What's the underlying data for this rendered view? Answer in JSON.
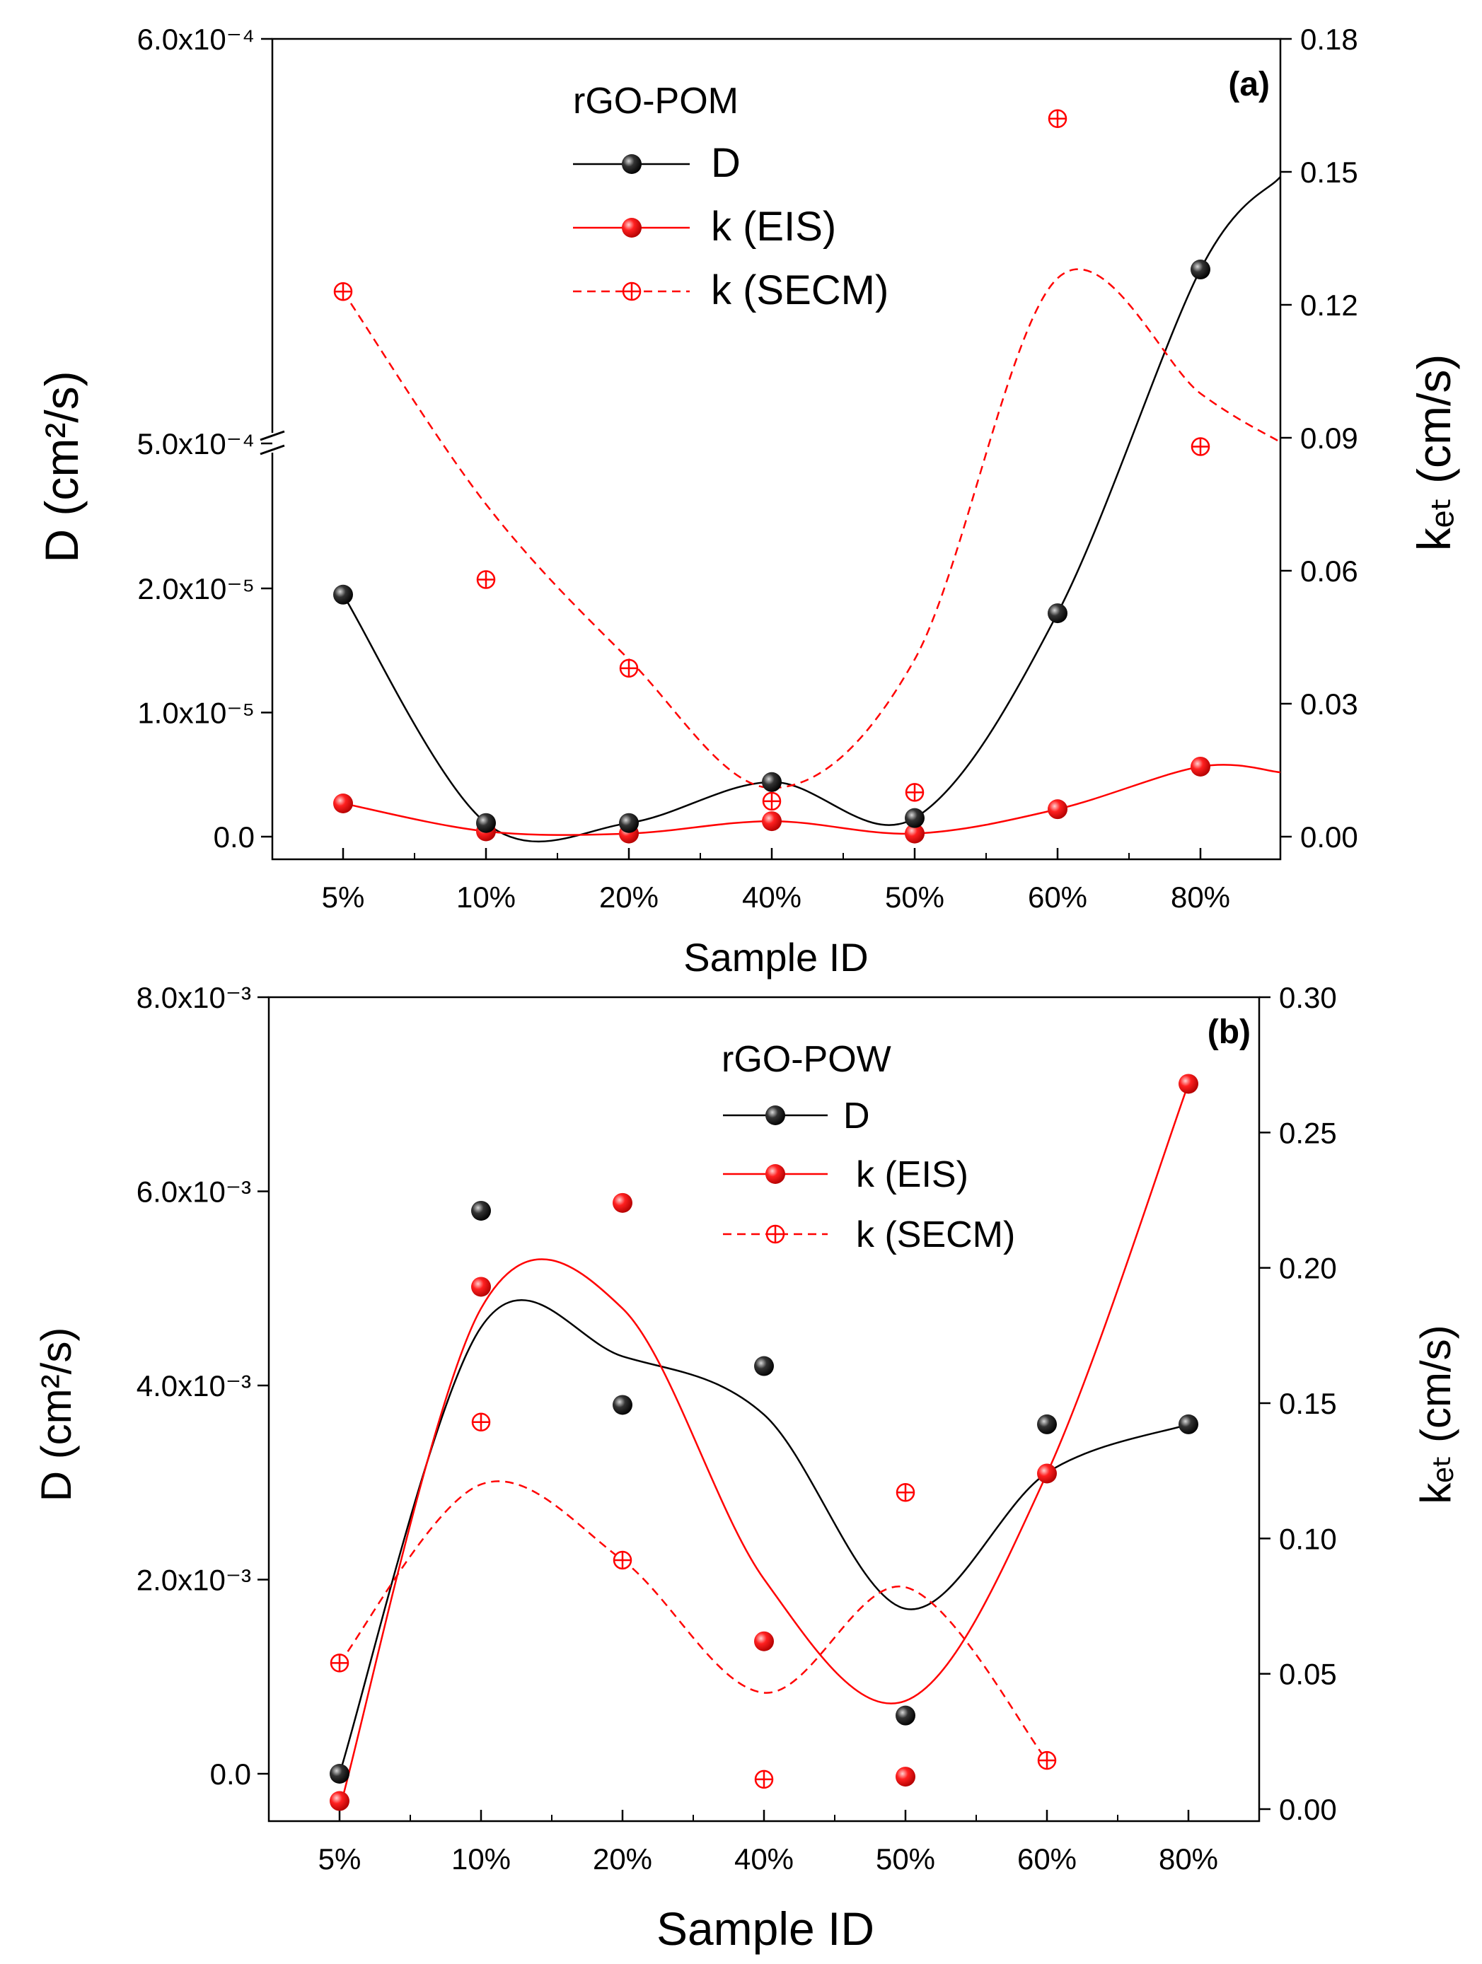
{
  "chart_data": [
    {
      "panel": "(a)",
      "type": "scatter",
      "title": "rGO-POM",
      "categories": [
        "5%",
        "10%",
        "20%",
        "40%",
        "50%",
        "60%",
        "80%"
      ],
      "xlabel": "Sample ID",
      "ylabel_left": "D (cm²/s)",
      "ylabel_right": "kₑₜ (cm/s)",
      "left_axis_broken": true,
      "left_ticks_lower": [
        "0.0",
        "1.0x10⁻⁵",
        "2.0x10⁻⁵"
      ],
      "left_ticks_upper": [
        "5.0x10⁻⁴",
        "6.0x10⁻⁴"
      ],
      "right_ticks": [
        "0.00",
        "0.03",
        "0.06",
        "0.09",
        "0.12",
        "0.15",
        "0.18"
      ],
      "right_ylim": [
        0,
        0.18
      ],
      "series": [
        {
          "name": "D",
          "axis": "left",
          "color": "#000000",
          "marker": "ball",
          "values": [
            "1.95e-5",
            "1.1e-6",
            "1.1e-6",
            "4.4e-6",
            "1.5e-6",
            "1.8e-5",
            "5.43e-4"
          ]
        },
        {
          "name": "k (EIS)",
          "axis": "right",
          "color": "#ff0000",
          "marker": "ball",
          "values": [
            0.0075,
            0.0012,
            0.0007,
            0.0035,
            0.0007,
            0.0062,
            0.0158
          ]
        },
        {
          "name": "k (SECM)",
          "axis": "right",
          "color": "#ff0000",
          "marker": "crosscircle",
          "dashed": true,
          "values": [
            0.123,
            0.058,
            0.038,
            0.008,
            0.01,
            0.162,
            0.088
          ]
        }
      ]
    },
    {
      "panel": "(b)",
      "type": "scatter",
      "title": "rGO-POW",
      "categories": [
        "5%",
        "10%",
        "20%",
        "40%",
        "50%",
        "60%",
        "80%"
      ],
      "xlabel": "Sample ID",
      "ylabel_left": "D (cm²/s)",
      "ylabel_right": "kₑₜ (cm/s)",
      "left_ticks": [
        "0.0",
        "2.0x10⁻³",
        "4.0x10⁻³",
        "6.0x10⁻³",
        "8.0x10⁻³"
      ],
      "left_ylim": [
        -0.0005,
        0.008
      ],
      "right_ticks": [
        "0.00",
        "0.05",
        "0.10",
        "0.15",
        "0.20",
        "0.25",
        "0.30"
      ],
      "right_ylim": [
        0,
        0.3
      ],
      "series": [
        {
          "name": "D",
          "axis": "left",
          "color": "#000000",
          "marker": "ball",
          "values": [
            0.0,
            0.0058,
            0.0038,
            0.0042,
            0.0006,
            0.0036,
            0.0036
          ]
        },
        {
          "name": "k (EIS)",
          "axis": "right",
          "color": "#ff0000",
          "marker": "ball",
          "values": [
            0.003,
            0.193,
            0.224,
            0.062,
            0.012,
            0.124,
            0.268
          ]
        },
        {
          "name": "k (SECM)",
          "axis": "right",
          "color": "#ff0000",
          "marker": "crosscircle",
          "dashed": true,
          "values": [
            0.054,
            0.143,
            0.092,
            0.011,
            0.117,
            0.018,
            null
          ]
        }
      ]
    }
  ]
}
